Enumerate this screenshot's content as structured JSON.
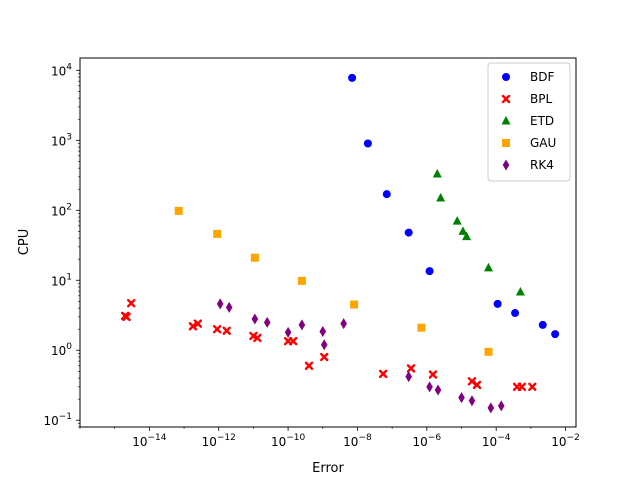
{
  "chart_data": {
    "type": "scatter",
    "xlabel": "Error",
    "ylabel": "CPU",
    "x_scale": "log",
    "y_scale": "log",
    "xlim": [
      1e-16,
      0.02
    ],
    "ylim": [
      0.08,
      15000
    ],
    "x_ticks": [
      {
        "value": 1e-14,
        "mant": "10",
        "exp": "−14"
      },
      {
        "value": 1e-12,
        "mant": "10",
        "exp": "−12"
      },
      {
        "value": 1e-10,
        "mant": "10",
        "exp": "−10"
      },
      {
        "value": 1e-08,
        "mant": "10",
        "exp": "−8"
      },
      {
        "value": 1e-06,
        "mant": "10",
        "exp": "−6"
      },
      {
        "value": 0.0001,
        "mant": "10",
        "exp": "−4"
      },
      {
        "value": 0.01,
        "mant": "10",
        "exp": "−2"
      }
    ],
    "y_ticks": [
      {
        "value": 0.1,
        "mant": "10",
        "exp": "−1"
      },
      {
        "value": 1,
        "mant": "10",
        "exp": "0"
      },
      {
        "value": 10,
        "mant": "10",
        "exp": "1"
      },
      {
        "value": 100,
        "mant": "10",
        "exp": "2"
      },
      {
        "value": 1000,
        "mant": "10",
        "exp": "3"
      },
      {
        "value": 10000,
        "mant": "10",
        "exp": "4"
      }
    ],
    "grid": false,
    "legend_position": "top-right",
    "series": [
      {
        "name": "BDF",
        "marker": "circle",
        "color": "#0000ff",
        "points": [
          [
            7e-09,
            7800
          ],
          [
            2e-08,
            900
          ],
          [
            7e-08,
            170
          ],
          [
            3e-07,
            48
          ],
          [
            1.2e-06,
            13.5
          ],
          [
            0.00011,
            4.6
          ],
          [
            0.00035,
            3.4
          ],
          [
            0.0022,
            2.3
          ],
          [
            0.005,
            1.7
          ]
        ]
      },
      {
        "name": "BPL",
        "marker": "x",
        "color": "#ff0000",
        "points": [
          [
            2e-15,
            3.1
          ],
          [
            2.2e-15,
            3.0
          ],
          [
            3e-15,
            4.7
          ],
          [
            1.8e-13,
            2.2
          ],
          [
            2.5e-13,
            2.4
          ],
          [
            9e-13,
            2.0
          ],
          [
            1.7e-12,
            1.9
          ],
          [
            1e-11,
            1.6
          ],
          [
            1.3e-11,
            1.5
          ],
          [
            1e-10,
            1.35
          ],
          [
            1.4e-10,
            1.35
          ],
          [
            4e-10,
            0.6
          ],
          [
            1.1e-09,
            0.8
          ],
          [
            5.5e-08,
            0.46
          ],
          [
            3.5e-07,
            0.55
          ],
          [
            1.5e-06,
            0.45
          ],
          [
            2e-05,
            0.36
          ],
          [
            2.8e-05,
            0.32
          ],
          [
            0.0004,
            0.3
          ],
          [
            0.00055,
            0.3
          ],
          [
            0.0011,
            0.3
          ]
        ]
      },
      {
        "name": "ETD",
        "marker": "triangle",
        "color": "#008000",
        "points": [
          [
            2e-06,
            330
          ],
          [
            2.5e-06,
            150
          ],
          [
            7.5e-06,
            70
          ],
          [
            1.1e-05,
            50
          ],
          [
            1.4e-05,
            42
          ],
          [
            6e-05,
            15
          ],
          [
            0.0005,
            6.8
          ]
        ]
      },
      {
        "name": "GAU",
        "marker": "square",
        "color": "#ffa500",
        "points": [
          [
            7e-14,
            98
          ],
          [
            9e-13,
            46
          ],
          [
            1.1e-11,
            21
          ],
          [
            2.5e-10,
            9.8
          ],
          [
            8e-09,
            4.5
          ],
          [
            7e-07,
            2.1
          ],
          [
            6e-05,
            0.95
          ]
        ]
      },
      {
        "name": "RK4",
        "marker": "diamond",
        "color": "#800080",
        "points": [
          [
            1.1e-12,
            4.6
          ],
          [
            2e-12,
            4.1
          ],
          [
            1.1e-11,
            2.8
          ],
          [
            2.5e-11,
            2.5
          ],
          [
            1e-10,
            1.8
          ],
          [
            2.5e-10,
            2.3
          ],
          [
            1e-09,
            1.85
          ],
          [
            1.1e-09,
            1.2
          ],
          [
            4e-09,
            2.4
          ],
          [
            3e-07,
            0.42
          ],
          [
            1.2e-06,
            0.3
          ],
          [
            2.1e-06,
            0.27
          ],
          [
            1e-05,
            0.21
          ],
          [
            2e-05,
            0.19
          ],
          [
            7e-05,
            0.15
          ],
          [
            0.00014,
            0.16
          ]
        ]
      }
    ]
  }
}
